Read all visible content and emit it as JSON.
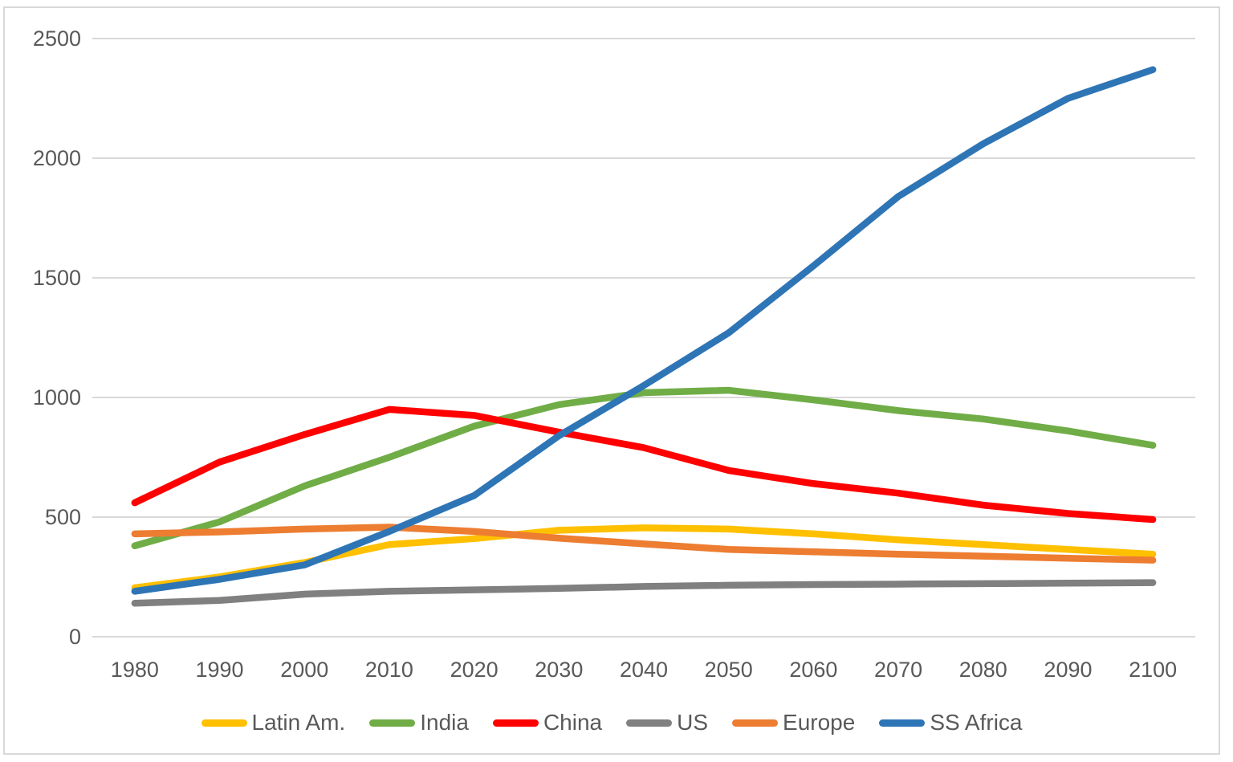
{
  "chart_data": {
    "type": "line",
    "title": "",
    "categories": [
      "1980",
      "1990",
      "2000",
      "2010",
      "2020",
      "2030",
      "2040",
      "2050",
      "2060",
      "2070",
      "2080",
      "2090",
      "2100"
    ],
    "y_ticks": [
      "0",
      "500",
      "1000",
      "1500",
      "2000",
      "2500"
    ],
    "y_tick_values": [
      0,
      500,
      1000,
      1500,
      2000,
      2500
    ],
    "ylim": [
      0,
      2500
    ],
    "grid": "horizontal",
    "legend_position": "bottom",
    "series": [
      {
        "name": "Latin Am.",
        "color": "#FFC000",
        "values": [
          205,
          250,
          310,
          385,
          410,
          445,
          455,
          450,
          430,
          405,
          385,
          365,
          345
        ]
      },
      {
        "name": "India",
        "color": "#70AD47",
        "values": [
          380,
          480,
          630,
          750,
          880,
          970,
          1020,
          1030,
          990,
          945,
          910,
          860,
          800
        ]
      },
      {
        "name": "China",
        "color": "#FF0000",
        "values": [
          560,
          730,
          845,
          950,
          925,
          855,
          790,
          695,
          640,
          600,
          550,
          515,
          490
        ]
      },
      {
        "name": "US",
        "color": "#808080",
        "values": [
          140,
          152,
          178,
          190,
          196,
          202,
          210,
          215,
          218,
          220,
          222,
          224,
          226
        ]
      },
      {
        "name": "Europe",
        "color": "#ED7D31",
        "values": [
          430,
          438,
          450,
          458,
          440,
          412,
          388,
          365,
          355,
          345,
          337,
          328,
          320
        ]
      },
      {
        "name": "SS Africa",
        "color": "#2E75B6",
        "values": [
          190,
          240,
          300,
          440,
          590,
          840,
          1050,
          1270,
          1550,
          1840,
          2060,
          2250,
          2370
        ]
      }
    ]
  },
  "style": {
    "grid_color": "#D9D9D9",
    "axis_text_color": "#595959",
    "border_color": "#D9D9D9",
    "background_color": "#FFFFFF"
  }
}
